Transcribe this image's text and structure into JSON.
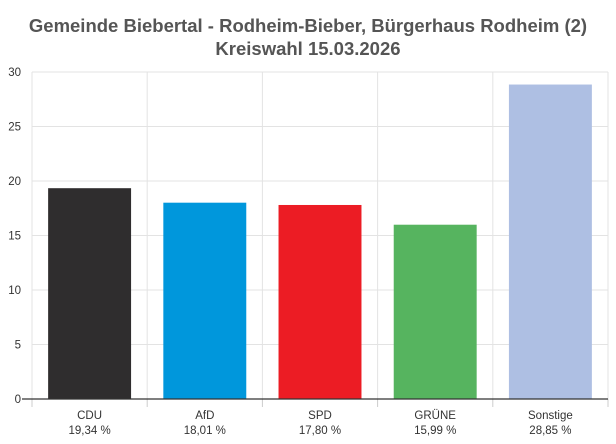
{
  "chart_data": {
    "type": "bar",
    "title": "Gemeinde Biebertal - Rodheim-Bieber, Bürgerhaus Rodheim (2)",
    "subtitle": "Kreiswahl 15.03.2026",
    "xlabel": "",
    "ylabel": "",
    "ylim": [
      0,
      30
    ],
    "yticks": [
      0,
      5,
      10,
      15,
      20,
      25,
      30
    ],
    "grid": true,
    "categories": [
      "CDU",
      "AfD",
      "SPD",
      "GRÜNE",
      "Sonstige"
    ],
    "values": [
      19.34,
      18.01,
      17.8,
      15.99,
      28.85
    ],
    "value_labels": [
      "19,34 %",
      "18,01 %",
      "17,80 %",
      "15,99 %",
      "28,85 %"
    ],
    "colors": [
      "#2f2d2e",
      "#0097dc",
      "#ec1c24",
      "#56b45f",
      "#aebfe3"
    ]
  }
}
